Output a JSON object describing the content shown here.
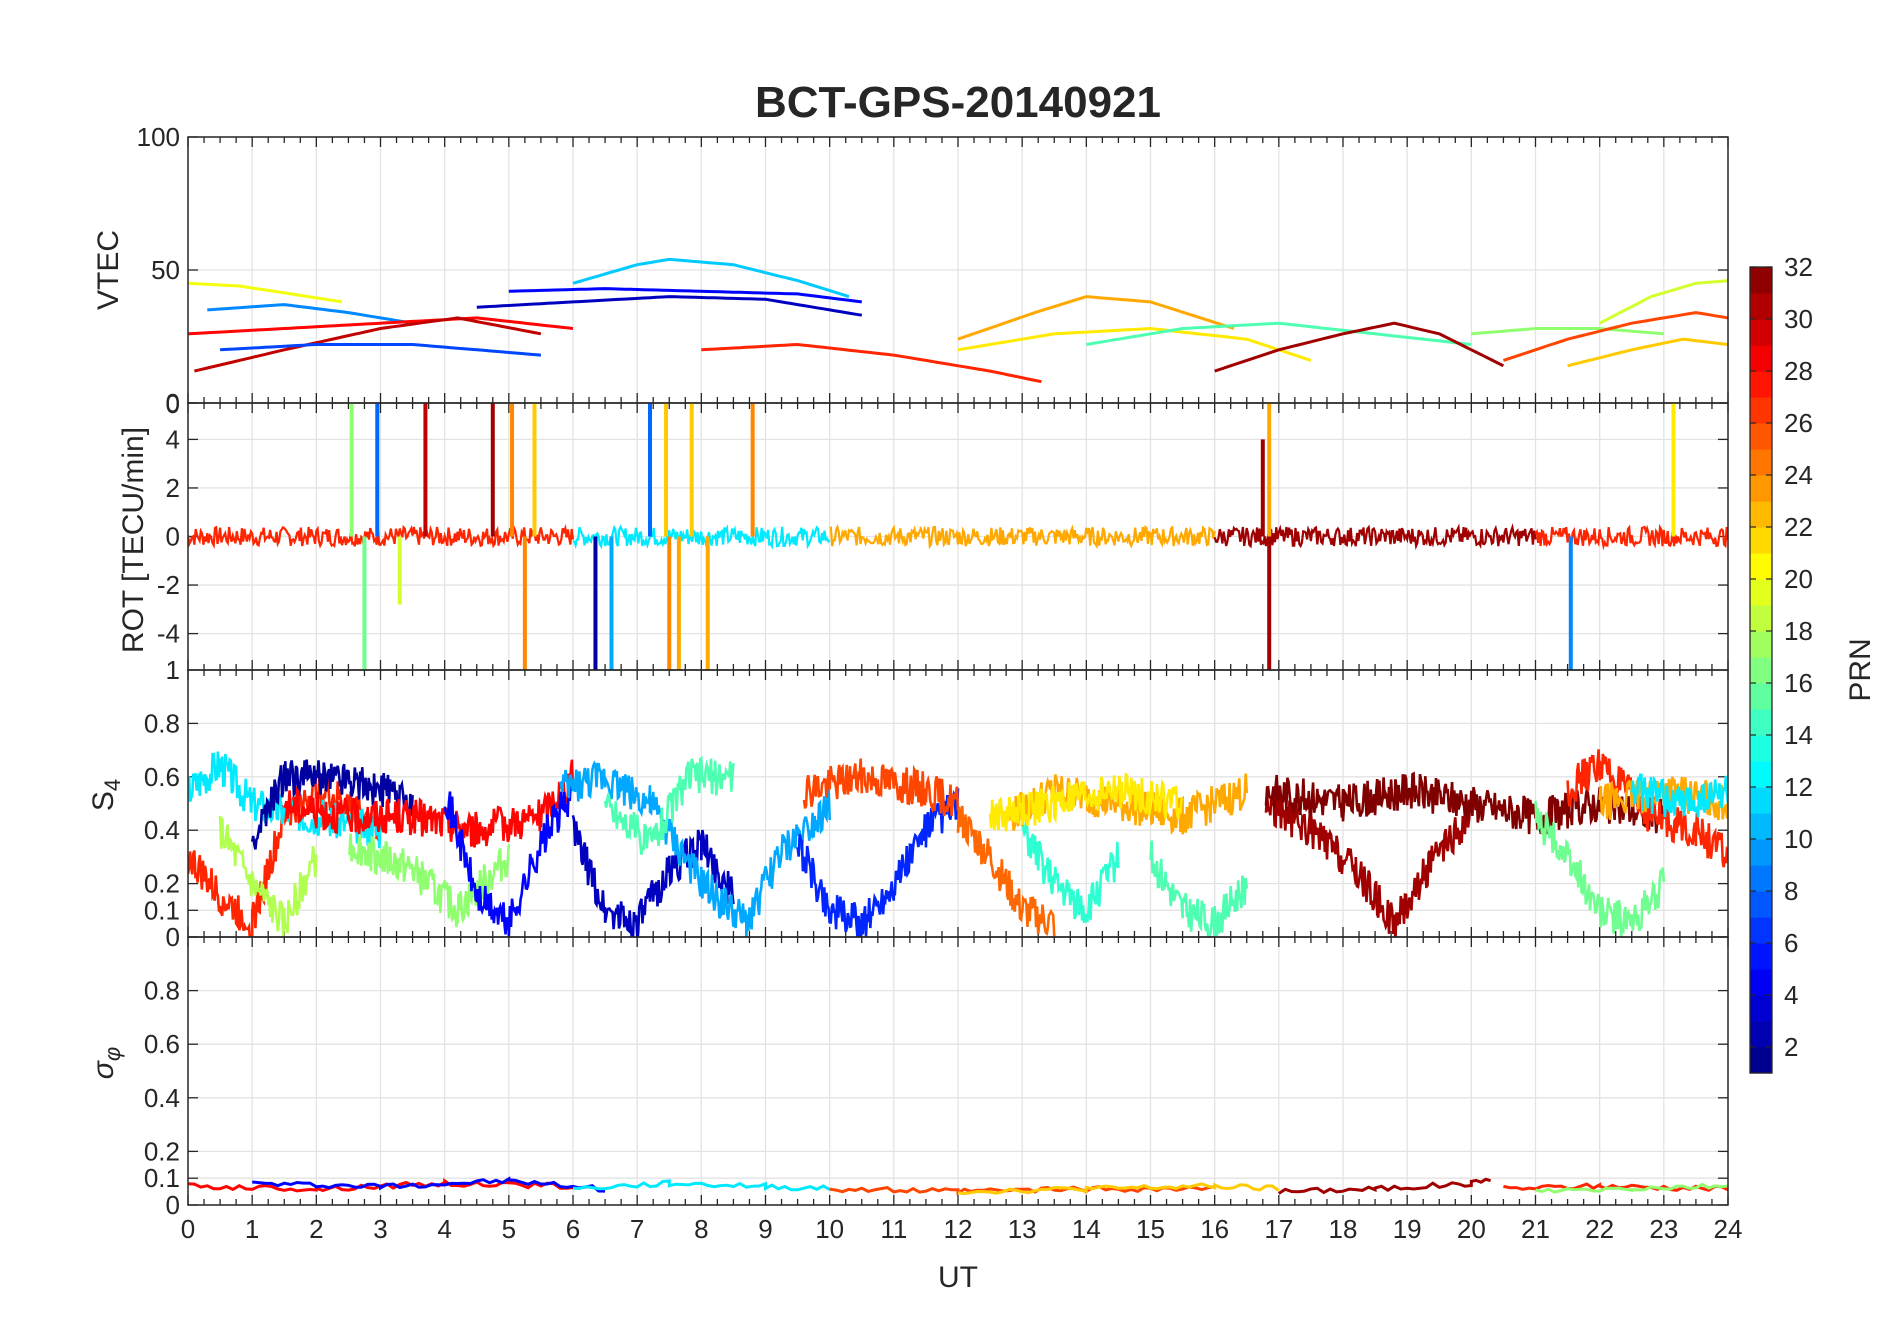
{
  "chart_data": [
    {
      "type": "line",
      "panel": "vtec",
      "title": "BCT-GPS-20140921",
      "xlabel": "",
      "ylabel": "VTEC",
      "xlim": [
        0,
        24
      ],
      "ylim": [
        0,
        100
      ],
      "grid": true,
      "x_ticks": [
        "0",
        "1",
        "2",
        "3",
        "4",
        "5",
        "6",
        "7",
        "8",
        "9",
        "10",
        "11",
        "12",
        "13",
        "14",
        "15",
        "16",
        "17",
        "18",
        "19",
        "20",
        "21",
        "22",
        "23",
        "24"
      ],
      "y_ticks": [
        "100",
        "50",
        "0"
      ],
      "y_tick_values": [
        100,
        50,
        0
      ],
      "series": [
        {
          "name": "PRN 20",
          "prn": 20,
          "x": [
            0,
            0.8,
            1.6,
            2.4
          ],
          "values": [
            45,
            44,
            41,
            38
          ]
        },
        {
          "name": "PRN 9",
          "prn": 9,
          "x": [
            0.3,
            1.5,
            2.5,
            3.5
          ],
          "values": [
            35,
            37,
            34,
            30
          ]
        },
        {
          "name": "PRN 11",
          "prn": 11,
          "x": [
            6,
            7,
            7.5,
            8.5,
            9.5,
            10.3
          ],
          "values": [
            45,
            52,
            54,
            52,
            46,
            40
          ]
        },
        {
          "name": "PRN 5",
          "prn": 5,
          "x": [
            5,
            6.5,
            8,
            9.5,
            10.5
          ],
          "values": [
            42,
            43,
            42,
            41,
            38
          ]
        },
        {
          "name": "PRN 3",
          "prn": 3,
          "x": [
            4.5,
            6,
            7.5,
            9,
            10.5
          ],
          "values": [
            36,
            38,
            40,
            39,
            33
          ]
        },
        {
          "name": "PRN 28",
          "prn": 28,
          "x": [
            0,
            1.5,
            3,
            4.5,
            6
          ],
          "values": [
            26,
            28,
            30,
            32,
            28
          ]
        },
        {
          "name": "PRN 30",
          "prn": 30,
          "x": [
            0.1,
            1.5,
            3,
            4.2,
            5.5
          ],
          "values": [
            12,
            20,
            28,
            32,
            26
          ]
        },
        {
          "name": "PRN 27",
          "prn": 27,
          "x": [
            8,
            9.5,
            11,
            12.5,
            13.3
          ],
          "values": [
            20,
            22,
            18,
            12,
            8
          ]
        },
        {
          "name": "PRN 23",
          "prn": 23,
          "x": [
            12,
            13.2,
            14,
            15,
            16.3
          ],
          "values": [
            24,
            34,
            40,
            38,
            28
          ]
        },
        {
          "name": "PRN 21",
          "prn": 21,
          "x": [
            12,
            13.5,
            15,
            16.5,
            17.5
          ],
          "values": [
            20,
            26,
            28,
            24,
            16
          ]
        },
        {
          "name": "PRN 15",
          "prn": 15,
          "x": [
            14,
            15.5,
            17,
            18.5,
            20
          ],
          "values": [
            22,
            28,
            30,
            26,
            22
          ]
        },
        {
          "name": "PRN 31",
          "prn": 31,
          "x": [
            16,
            17,
            18,
            18.8,
            19.5,
            20.5
          ],
          "values": [
            12,
            20,
            26,
            30,
            26,
            14
          ]
        },
        {
          "name": "PRN 17",
          "prn": 17,
          "x": [
            20,
            21,
            22,
            23
          ],
          "values": [
            26,
            28,
            28,
            26
          ]
        },
        {
          "name": "PRN 19",
          "prn": 19,
          "x": [
            22,
            22.8,
            23.5,
            24
          ],
          "values": [
            30,
            40,
            45,
            46
          ]
        },
        {
          "name": "PRN 26",
          "prn": 26,
          "x": [
            20.5,
            21.5,
            22.5,
            23.5,
            24
          ],
          "values": [
            16,
            24,
            30,
            34,
            32
          ]
        },
        {
          "name": "PRN 22",
          "prn": 22,
          "x": [
            21.5,
            22.5,
            23.3,
            24
          ],
          "values": [
            14,
            20,
            24,
            22
          ]
        },
        {
          "name": "PRN 7",
          "prn": 7,
          "x": [
            0.5,
            2,
            3.5,
            5.5
          ],
          "values": [
            20,
            22,
            22,
            18
          ]
        }
      ]
    },
    {
      "type": "line",
      "panel": "rot",
      "ylabel": "ROT [TECU/min]",
      "xlim": [
        0,
        24
      ],
      "ylim": [
        -5.5,
        5.5
      ],
      "grid": true,
      "y_ticks": [
        "4",
        "2",
        "0",
        "-2",
        "-4"
      ],
      "y_tick_values": [
        4,
        2,
        0,
        -2,
        -4
      ],
      "y_edge_labels": [
        "0",
        "1"
      ],
      "baseline_band": {
        "x_range": [
          0,
          24
        ],
        "half_width": 0.4
      },
      "spikes": [
        {
          "prn": 17,
          "x": 2.55,
          "top": 5.5
        },
        {
          "prn": 16,
          "x": 2.75,
          "bottom": -5.5
        },
        {
          "prn": 19,
          "x": 3.3,
          "bottom": -2.8
        },
        {
          "prn": 8,
          "x": 2.95,
          "top": 5.5
        },
        {
          "prn": 30,
          "x": 3.7,
          "top": 5.5
        },
        {
          "prn": 31,
          "x": 4.75,
          "top": 5.5
        },
        {
          "prn": 24,
          "x": 5.05,
          "top": 5.5
        },
        {
          "prn": 24,
          "x": 5.25,
          "bottom": -5.5
        },
        {
          "prn": 22,
          "x": 5.4,
          "top": 5.5
        },
        {
          "prn": 2,
          "x": 6.35,
          "bottom": -5.5
        },
        {
          "prn": 10,
          "x": 6.6,
          "bottom": -5.5
        },
        {
          "prn": 8,
          "x": 7.2,
          "top": 5.5
        },
        {
          "prn": 22,
          "x": 7.45,
          "top": 5.5
        },
        {
          "prn": 24,
          "x": 7.5,
          "bottom": -5.5
        },
        {
          "prn": 23,
          "x": 7.65,
          "bottom": -5.5
        },
        {
          "prn": 22,
          "x": 7.85,
          "top": 5.5
        },
        {
          "prn": 23,
          "x": 8.1,
          "bottom": -5.5
        },
        {
          "prn": 24,
          "x": 8.8,
          "top": 5.5
        },
        {
          "prn": 31,
          "x": 16.75,
          "top": 4.0
        },
        {
          "prn": 31,
          "x": 16.85,
          "bottom": -5.5
        },
        {
          "prn": 23,
          "x": 16.85,
          "top": 5.5
        },
        {
          "prn": 9,
          "x": 21.55,
          "bottom": -5.5
        },
        {
          "prn": 21,
          "x": 23.15,
          "top": 5.5
        }
      ]
    },
    {
      "type": "line",
      "panel": "s4",
      "ylabel": "S4",
      "xlim": [
        0,
        24
      ],
      "ylim": [
        0,
        1
      ],
      "grid": true,
      "y_ticks": [
        "0.8",
        "0.6",
        "0.4",
        "0.2",
        "0.1",
        "0"
      ],
      "y_tick_values": [
        0.8,
        0.6,
        0.4,
        0.2,
        0.1,
        0
      ],
      "series": [
        {
          "name": "PRN 27",
          "prn": 27,
          "x": [
            0,
            0.5,
            1,
            1.5,
            2,
            2.5,
            3
          ],
          "values": [
            0.3,
            0.15,
            0.05,
            0.45,
            0.55,
            0.5,
            0.4
          ]
        },
        {
          "name": "PRN 18",
          "prn": 18,
          "x": [
            0.5,
            1,
            1.5,
            2
          ],
          "values": [
            0.4,
            0.2,
            0.05,
            0.3
          ]
        },
        {
          "name": "PRN 12",
          "prn": 12,
          "x": [
            0,
            0.5,
            1,
            2,
            3
          ],
          "values": [
            0.55,
            0.65,
            0.5,
            0.45,
            0.4
          ]
        },
        {
          "name": "PRN 2",
          "prn": 2,
          "x": [
            1,
            1.5,
            2.5,
            3.5
          ],
          "values": [
            0.35,
            0.6,
            0.6,
            0.5
          ]
        },
        {
          "name": "PRN 28",
          "prn": 28,
          "x": [
            1.5,
            2.5,
            3.5,
            4.5,
            5.5,
            6
          ],
          "values": [
            0.5,
            0.45,
            0.45,
            0.4,
            0.45,
            0.6
          ]
        },
        {
          "name": "PRN 17",
          "prn": 17,
          "x": [
            2.5,
            3.5,
            4.2,
            5
          ],
          "values": [
            0.35,
            0.25,
            0.1,
            0.3
          ]
        },
        {
          "name": "PRN 5",
          "prn": 5,
          "x": [
            4,
            4.5,
            5,
            5.5,
            6
          ],
          "values": [
            0.55,
            0.15,
            0.05,
            0.35,
            0.55
          ]
        },
        {
          "name": "PRN 3",
          "prn": 3,
          "x": [
            6,
            6.5,
            7,
            7.5,
            8,
            8.5
          ],
          "values": [
            0.4,
            0.1,
            0.05,
            0.25,
            0.35,
            0.15
          ]
        },
        {
          "name": "PRN 10",
          "prn": 10,
          "x": [
            5.8,
            6.5,
            7.2,
            8,
            8.7,
            9.2,
            10
          ],
          "values": [
            0.55,
            0.6,
            0.5,
            0.2,
            0.05,
            0.3,
            0.5
          ]
        },
        {
          "name": "PRN 15",
          "prn": 15,
          "x": [
            6.5,
            7.2,
            7.8,
            8.5
          ],
          "values": [
            0.5,
            0.35,
            0.6,
            0.6
          ]
        },
        {
          "name": "PRN 6",
          "prn": 6,
          "x": [
            9.5,
            10,
            10.5,
            11,
            11.5,
            12
          ],
          "values": [
            0.35,
            0.1,
            0.05,
            0.2,
            0.4,
            0.5
          ]
        },
        {
          "name": "PRN 26",
          "prn": 26,
          "x": [
            9.6,
            10.5,
            11.5,
            12
          ],
          "values": [
            0.55,
            0.6,
            0.55,
            0.5
          ]
        },
        {
          "name": "PRN 25",
          "prn": 25,
          "x": [
            12,
            12.5,
            13,
            13.5
          ],
          "values": [
            0.45,
            0.3,
            0.1,
            0.05
          ]
        },
        {
          "name": "PRN 14",
          "prn": 14,
          "x": [
            13,
            13.5,
            14,
            14.5
          ],
          "values": [
            0.4,
            0.2,
            0.1,
            0.3
          ]
        },
        {
          "name": "PRN 23",
          "prn": 23,
          "x": [
            12.8,
            13.5,
            14.5,
            15.5,
            16.5
          ],
          "values": [
            0.45,
            0.55,
            0.5,
            0.45,
            0.55
          ]
        },
        {
          "name": "PRN 21",
          "prn": 21,
          "x": [
            12.5,
            13.5,
            14.5,
            15.5
          ],
          "values": [
            0.45,
            0.5,
            0.55,
            0.5
          ]
        },
        {
          "name": "PRN 15",
          "prn": 15,
          "x": [
            15,
            15.5,
            16,
            16.5
          ],
          "values": [
            0.3,
            0.1,
            0.05,
            0.2
          ]
        },
        {
          "name": "PRN 31",
          "prn": 31,
          "x": [
            16.8,
            17.5,
            18.2,
            18.8,
            19.3,
            20
          ],
          "values": [
            0.5,
            0.4,
            0.25,
            0.05,
            0.25,
            0.45
          ]
        },
        {
          "name": "PRN 32",
          "prn": 32,
          "x": [
            16.8,
            18,
            19,
            20,
            21,
            22,
            23
          ],
          "values": [
            0.55,
            0.5,
            0.55,
            0.5,
            0.45,
            0.5,
            0.45
          ]
        },
        {
          "name": "PRN 16",
          "prn": 16,
          "x": [
            21,
            21.5,
            22,
            22.5,
            23
          ],
          "values": [
            0.45,
            0.3,
            0.1,
            0.05,
            0.2
          ]
        },
        {
          "name": "PRN 27",
          "prn": 27,
          "x": [
            21.5,
            22,
            22.8,
            23.5,
            24
          ],
          "values": [
            0.55,
            0.65,
            0.45,
            0.4,
            0.3
          ]
        },
        {
          "name": "PRN 23",
          "prn": 23,
          "x": [
            22,
            23,
            24
          ],
          "values": [
            0.5,
            0.55,
            0.5
          ]
        },
        {
          "name": "PRN 12",
          "prn": 12,
          "x": [
            22.5,
            23.3,
            24
          ],
          "values": [
            0.55,
            0.5,
            0.55
          ]
        }
      ]
    },
    {
      "type": "line",
      "panel": "sigma_phi",
      "ylabel": "σφ",
      "xlabel": "UT",
      "xlim": [
        0,
        24
      ],
      "ylim": [
        0,
        1
      ],
      "grid": true,
      "y_ticks": [
        "0.8",
        "0.6",
        "0.4",
        "0.2",
        "0.1",
        "0"
      ],
      "y_tick_values": [
        0.8,
        0.6,
        0.4,
        0.2,
        0.1,
        0
      ],
      "series": [
        {
          "name": "PRN 28",
          "prn": 28,
          "x": [
            0,
            2,
            4,
            6
          ],
          "values": [
            0.07,
            0.06,
            0.08,
            0.07
          ]
        },
        {
          "name": "PRN 5",
          "prn": 5,
          "x": [
            1,
            3,
            5,
            6.5
          ],
          "values": [
            0.08,
            0.07,
            0.09,
            0.06
          ]
        },
        {
          "name": "PRN 12",
          "prn": 12,
          "x": [
            6,
            7.5,
            9,
            10
          ],
          "values": [
            0.06,
            0.08,
            0.07,
            0.06
          ]
        },
        {
          "name": "PRN 26",
          "prn": 26,
          "x": [
            10,
            12,
            14,
            16
          ],
          "values": [
            0.06,
            0.05,
            0.06,
            0.06
          ]
        },
        {
          "name": "PRN 22",
          "prn": 22,
          "x": [
            12,
            14,
            16,
            17
          ],
          "values": [
            0.05,
            0.06,
            0.07,
            0.06
          ]
        },
        {
          "name": "PRN 31",
          "prn": 31,
          "x": [
            17,
            18.5,
            20,
            20.3
          ],
          "values": [
            0.05,
            0.06,
            0.08,
            0.1
          ]
        },
        {
          "name": "PRN 27",
          "prn": 27,
          "x": [
            20.5,
            22,
            24
          ],
          "values": [
            0.06,
            0.07,
            0.06
          ]
        },
        {
          "name": "PRN 17",
          "prn": 17,
          "x": [
            21,
            22.5,
            24
          ],
          "values": [
            0.05,
            0.06,
            0.07
          ]
        }
      ]
    }
  ],
  "colorbar": {
    "label": "PRN",
    "range": [
      1,
      32
    ],
    "colormap": "jet",
    "ticks": [
      "32",
      "30",
      "28",
      "26",
      "24",
      "22",
      "20",
      "18",
      "16",
      "14",
      "12",
      "10",
      "8",
      "6",
      "4",
      "2"
    ],
    "tick_values": [
      32,
      30,
      28,
      26,
      24,
      22,
      20,
      18,
      16,
      14,
      12,
      10,
      8,
      6,
      4,
      2
    ]
  }
}
